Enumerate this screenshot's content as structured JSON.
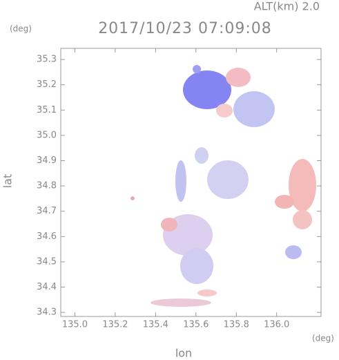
{
  "chart_data": {
    "type": "map",
    "title": "2017/10/23 07:09:08",
    "subtitle": "ALT(km) 2.0",
    "xlabel": "lon",
    "ylabel": "lat",
    "x_unit": "(deg)",
    "y_unit": "(deg)",
    "xlim": [
      134.93,
      136.22
    ],
    "ylim": [
      34.284,
      35.344
    ],
    "xticks": [
      {
        "value": 135.0,
        "label": "135.0"
      },
      135.2,
      135.4,
      135.6,
      135.8,
      {
        "value": 136.0,
        "label": "136.0"
      }
    ],
    "yticks": [
      34.3,
      34.4,
      34.5,
      34.6,
      34.7,
      34.8,
      34.9,
      {
        "value": 35.0,
        "label": "35.0"
      },
      35.1,
      35.2,
      35.3
    ],
    "frame_color": "#999999"
  }
}
